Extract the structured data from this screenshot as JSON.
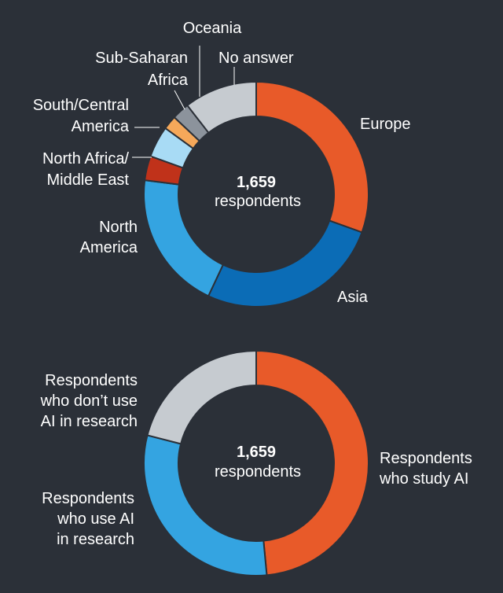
{
  "chart_data": [
    {
      "type": "pie",
      "variant": "donut",
      "center_value": "1,659",
      "center_label": "respondents",
      "slices": [
        {
          "label": "Europe",
          "value": 30.5,
          "color": "#e85a29"
        },
        {
          "label": "Asia",
          "value": 26.5,
          "color": "#0b6cb6"
        },
        {
          "label": "North America",
          "value": 20.0,
          "color": "#34a4e1"
        },
        {
          "label": "North Africa/ Middle East",
          "value": 3.5,
          "color": "#c0321a"
        },
        {
          "label": "South/Central America",
          "value": 4.5,
          "color": "#a8dbf5"
        },
        {
          "label": "Sub-Saharan Africa",
          "value": 2.0,
          "color": "#f5a85a"
        },
        {
          "label": "Oceania",
          "value": 2.5,
          "color": "#8c939c"
        },
        {
          "label": "No answer",
          "value": 10.5,
          "color": "#c6cbd0"
        }
      ]
    },
    {
      "type": "pie",
      "variant": "donut",
      "center_value": "1,659",
      "center_label": "respondents",
      "slices": [
        {
          "label": "Respondents who study AI",
          "value": 48.5,
          "color": "#e85a29"
        },
        {
          "label": "Respondents who use AI in research",
          "value": 30.5,
          "color": "#34a4e1"
        },
        {
          "label": "Respondents who don’t use AI in research",
          "value": 21.0,
          "color": "#c6cbd0"
        }
      ]
    }
  ]
}
